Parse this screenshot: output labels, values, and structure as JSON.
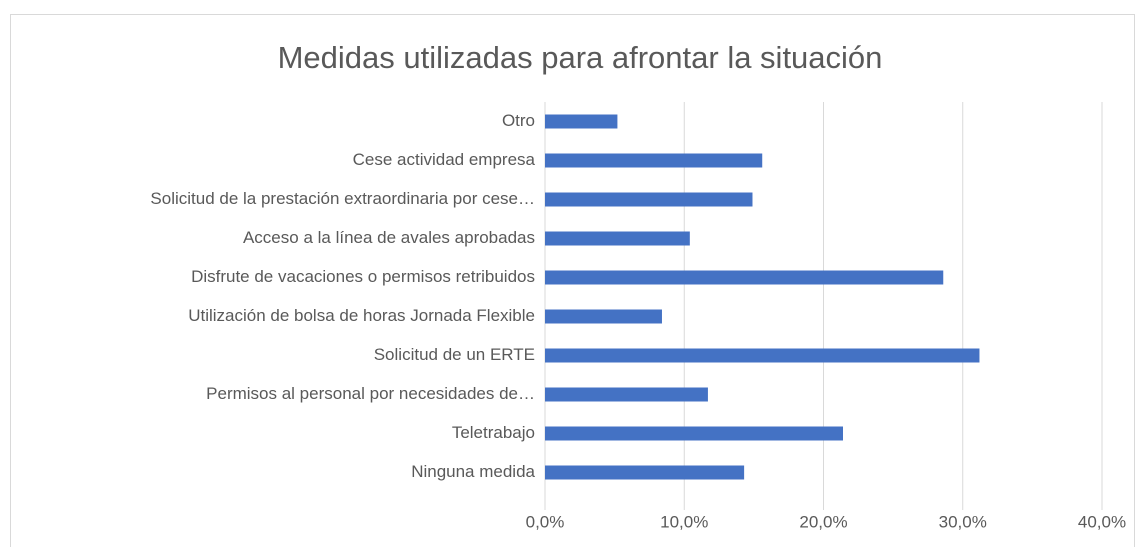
{
  "chart_data": {
    "type": "barh",
    "title": "Medidas utilizadas para afrontar la situación",
    "categories": [
      "Otro",
      "Cese actividad empresa",
      "Solicitud de la prestación extraordinaria por cese…",
      "Acceso a la línea de avales aprobadas",
      "Disfrute de vacaciones o permisos retribuidos",
      "Utilización de bolsa de horas Jornada Flexible",
      "Solicitud de un ERTE",
      "Permisos al personal por necesidades de…",
      "Teletrabajo",
      "Ninguna medida"
    ],
    "values": [
      5.2,
      15.6,
      14.9,
      10.4,
      28.6,
      8.4,
      31.2,
      11.7,
      21.4,
      14.3
    ],
    "color": "#4472c4",
    "xlim": [
      0,
      40
    ],
    "xticks": [
      {
        "value": 0,
        "label": "0,0%"
      },
      {
        "value": 10,
        "label": "10,0%"
      },
      {
        "value": 20,
        "label": "20,0%"
      },
      {
        "value": 30,
        "label": "30,0%"
      },
      {
        "value": 40,
        "label": "40,0%"
      }
    ],
    "grid": true
  }
}
